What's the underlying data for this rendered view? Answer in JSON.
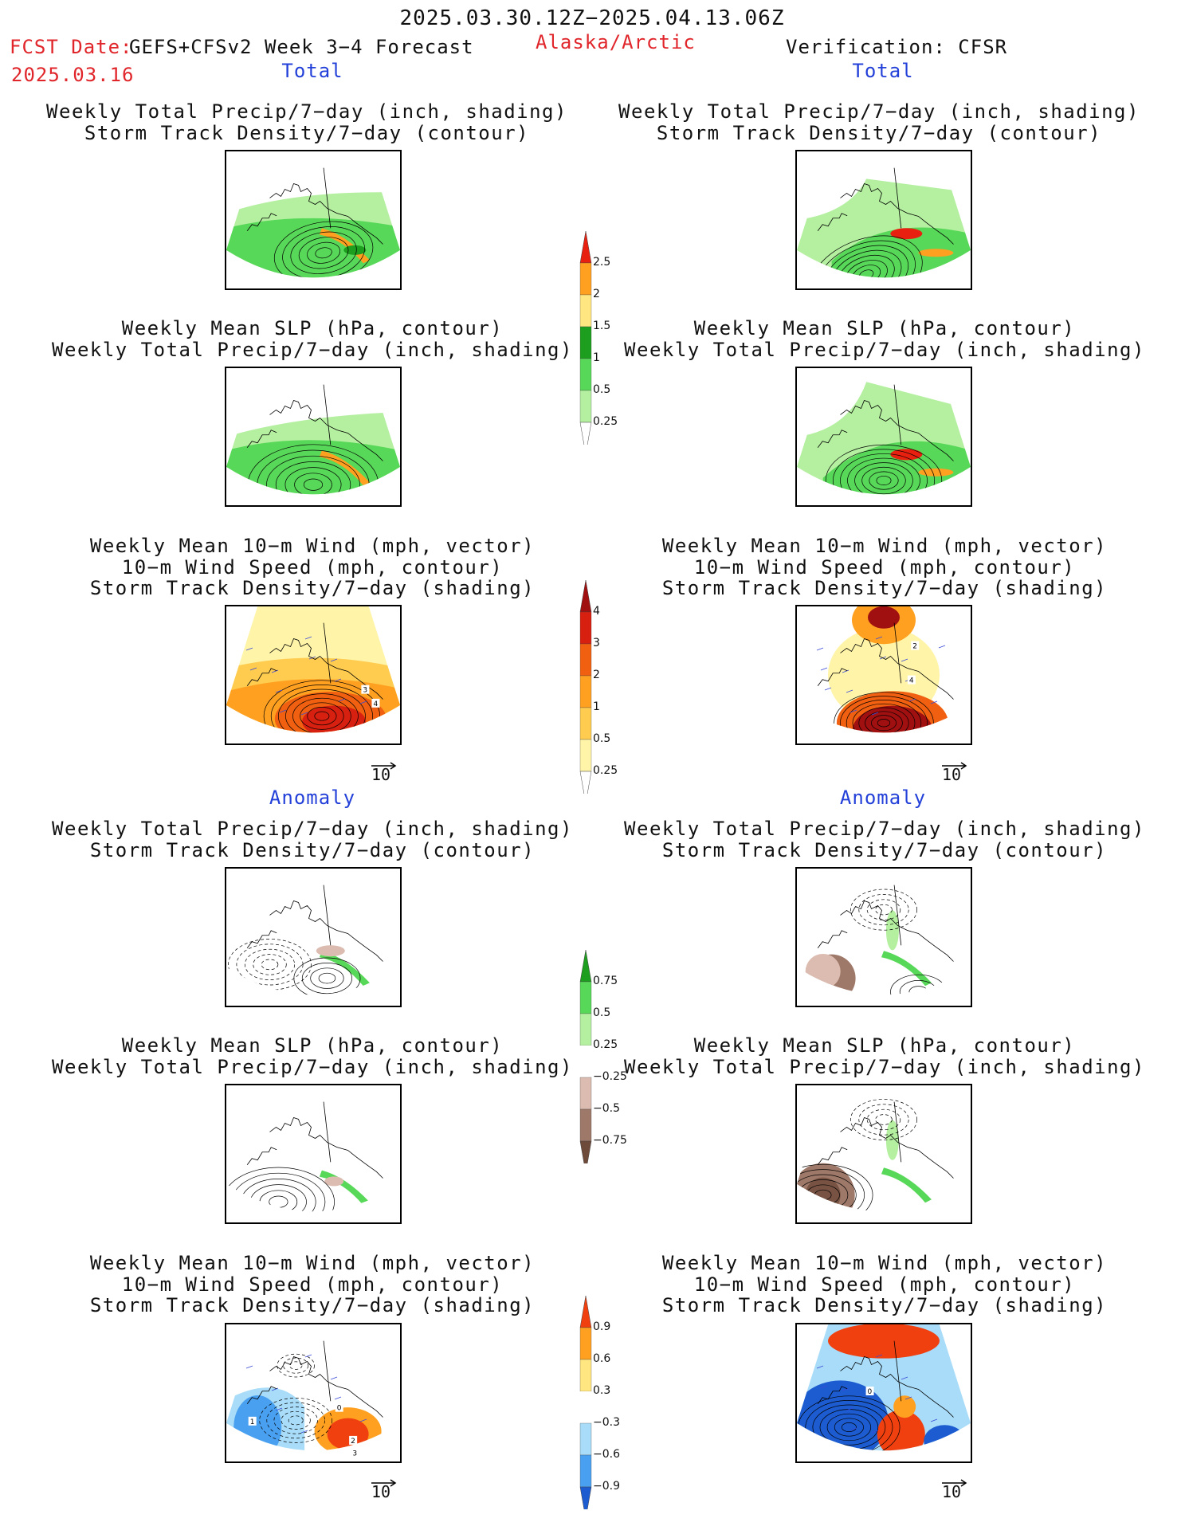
{
  "header": {
    "period": "2025.03.30.12Z−2025.04.13.06Z",
    "fcst_date_label": "FCST Date:",
    "fcst_product": "GEFS+CFSv2 Week 3−4 Forecast",
    "region": "Alaska/Arctic",
    "verification": "Verification: CFSR",
    "fcst_date": "2025.03.16"
  },
  "sections": {
    "total": "Total",
    "anomaly": "Anomaly"
  },
  "titles": {
    "precip_storm": [
      "Weekly Total Precip/7−day (inch, shading)",
      "Storm Track Density/7−day (contour)"
    ],
    "slp_precip": [
      "Weekly Mean SLP (hPa, contour)",
      "Weekly Total Precip/7−day (inch, shading)"
    ],
    "wind_storm": [
      "Weekly Mean 10−m Wind (mph, vector)",
      "10−m Wind Speed (mph, contour)",
      "Storm Track Density/7−day (shading)"
    ]
  },
  "vector_ref": "10",
  "chart_data": [
    {
      "type": "colorbar",
      "name": "precip_total",
      "levels": [
        "0.25",
        "0.5",
        "1",
        "1.5",
        "2",
        "2.5"
      ],
      "colors": [
        "#ffffff",
        "#b4f0a0",
        "#58d858",
        "#1e9e1e",
        "#ffe680",
        "#ffa020",
        "#e82010"
      ]
    },
    {
      "type": "colorbar",
      "name": "storm_density_total",
      "levels": [
        "0.25",
        "0.5",
        "1",
        "2",
        "3",
        "4"
      ],
      "colors": [
        "#ffffff",
        "#fff4a8",
        "#ffcc50",
        "#ffa020",
        "#f06010",
        "#d82010",
        "#a01010"
      ]
    },
    {
      "type": "colorbar",
      "name": "precip_anomaly",
      "levels": [
        "−0.75",
        "−0.5",
        "−0.25",
        "0.25",
        "0.5",
        "0.75"
      ],
      "colors": [
        "#6e4a3a",
        "#9e7868",
        "#dcbcb0",
        "#ffffff",
        "#b4f0a0",
        "#58d858",
        "#1e9e1e"
      ]
    },
    {
      "type": "colorbar",
      "name": "storm_density_anomaly",
      "levels": [
        "−0.9",
        "−0.6",
        "−0.3",
        "0.3",
        "0.6",
        "0.9"
      ],
      "colors": [
        "#1c5cd0",
        "#4aa0f0",
        "#a8dcf8",
        "#ffffff",
        "#ffe680",
        "#ffa020",
        "#f04010"
      ]
    }
  ],
  "panel_labels": {
    "fcst_total_wind": [
      "4",
      "3"
    ],
    "obs_total_wind": [
      "2",
      "4"
    ],
    "fcst_anom_wind": [
      "1",
      "0",
      "2",
      "3"
    ],
    "obs_anom_wind": [
      "0"
    ]
  }
}
